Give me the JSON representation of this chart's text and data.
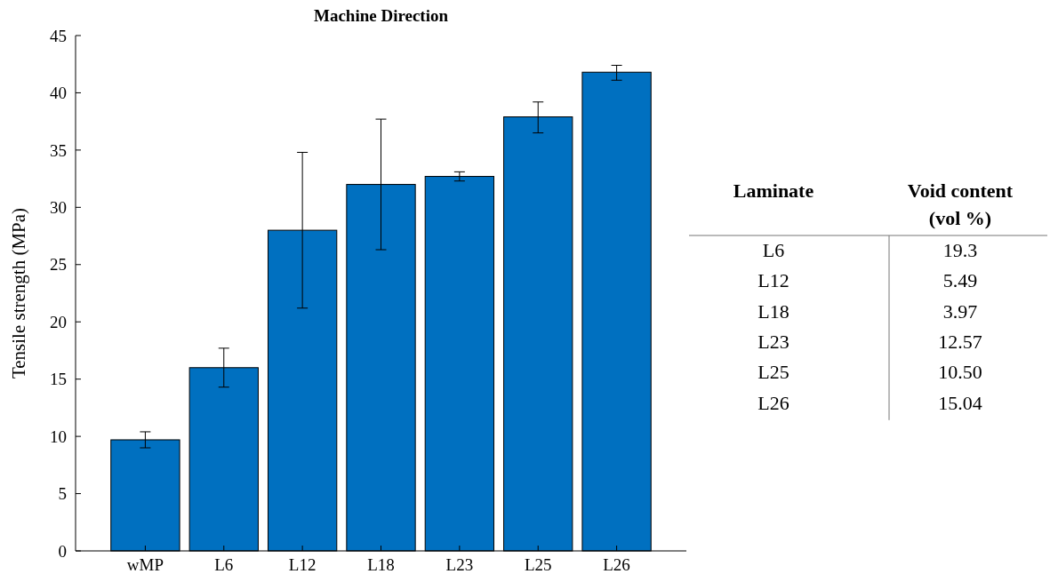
{
  "chart_data": [
    {
      "type": "bar",
      "title": "Machine Direction",
      "ylabel": "Tensile strength (MPa)",
      "categories": [
        "wMP",
        "L6",
        "L12",
        "L18",
        "L23",
        "L25",
        "L26"
      ],
      "values": [
        9.7,
        16.0,
        28.0,
        32.0,
        32.7,
        37.9,
        41.8
      ],
      "errors": [
        [
          9.0,
          10.4
        ],
        [
          14.3,
          17.7
        ],
        [
          21.2,
          34.8
        ],
        [
          26.3,
          37.7
        ],
        [
          32.3,
          33.1
        ],
        [
          36.5,
          39.2
        ],
        [
          41.1,
          42.4
        ]
      ],
      "color": "#0070c0",
      "ylim": [
        0,
        45
      ],
      "yticks": [
        0,
        5,
        10,
        15,
        20,
        25,
        30,
        35,
        40,
        45
      ]
    },
    {
      "type": "other",
      "xlabel": "Laminate",
      "ylabel": "Void content (vol %)",
      "categories": [
        "L6",
        "L12",
        "L18",
        "L23",
        "L25",
        "L26"
      ],
      "values": [
        19.3,
        5.49,
        3.97,
        12.57,
        10.5,
        15.04
      ],
      "value_labels": [
        "19.3",
        "5.49",
        "3.97",
        "12.57",
        "10.50",
        "15.04"
      ]
    }
  ]
}
